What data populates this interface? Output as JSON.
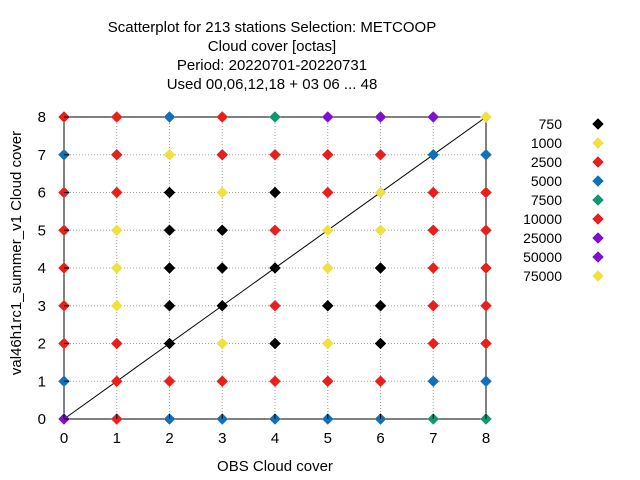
{
  "chart_data": {
    "type": "scatter",
    "title_lines": [
      "Scatterplot for  213 stations Selection: METCOOP",
      "Cloud cover [octas]",
      "Period: 20220701-20220731",
      "Used  00,06,12,18  + 03 06 ... 48"
    ],
    "xlabel": "OBS Cloud cover",
    "ylabel": "val46h1rc1_summer_v1 Cloud cover",
    "xlim": [
      0,
      8
    ],
    "ylim": [
      0,
      8
    ],
    "xticks": [
      0,
      1,
      2,
      3,
      4,
      5,
      6,
      7,
      8
    ],
    "yticks": [
      0,
      1,
      2,
      3,
      4,
      5,
      6,
      7,
      8
    ],
    "grid": true,
    "diagonal_line": true,
    "legend_placement": "right",
    "series": [
      {
        "name": "750",
        "color": "#000000",
        "points": [
          [
            2,
            2
          ],
          [
            2,
            3
          ],
          [
            2,
            4
          ],
          [
            2,
            5
          ],
          [
            2,
            6
          ],
          [
            3,
            3
          ],
          [
            3,
            4
          ],
          [
            3,
            5
          ],
          [
            4,
            2
          ],
          [
            4,
            4
          ],
          [
            4,
            6
          ],
          [
            5,
            3
          ],
          [
            6,
            2
          ],
          [
            6,
            3
          ],
          [
            6,
            4
          ]
        ]
      },
      {
        "name": "1000",
        "color": "#f0e040",
        "points": [
          [
            1,
            3
          ],
          [
            1,
            4
          ],
          [
            1,
            5
          ],
          [
            2,
            7
          ],
          [
            3,
            2
          ],
          [
            3,
            6
          ],
          [
            5,
            2
          ],
          [
            5,
            4
          ],
          [
            5,
            5
          ],
          [
            6,
            5
          ],
          [
            6,
            6
          ]
        ]
      },
      {
        "name": "2500",
        "color": "#e8201c",
        "points": [
          [
            0,
            2
          ],
          [
            0,
            3
          ],
          [
            0,
            4
          ],
          [
            0,
            5
          ],
          [
            0,
            6
          ],
          [
            0,
            8
          ],
          [
            1,
            0
          ],
          [
            1,
            1
          ],
          [
            1,
            2
          ],
          [
            1,
            6
          ],
          [
            1,
            7
          ],
          [
            1,
            8
          ],
          [
            2,
            1
          ],
          [
            3,
            1
          ],
          [
            3,
            7
          ],
          [
            3,
            8
          ],
          [
            4,
            1
          ],
          [
            4,
            3
          ],
          [
            4,
            5
          ],
          [
            4,
            7
          ],
          [
            5,
            1
          ],
          [
            5,
            6
          ],
          [
            5,
            7
          ],
          [
            6,
            1
          ],
          [
            6,
            7
          ],
          [
            7,
            2
          ],
          [
            7,
            3
          ],
          [
            7,
            4
          ],
          [
            7,
            5
          ],
          [
            7,
            6
          ],
          [
            8,
            2
          ],
          [
            8,
            3
          ],
          [
            8,
            4
          ],
          [
            8,
            5
          ],
          [
            8,
            6
          ]
        ]
      },
      {
        "name": "5000",
        "color": "#1070b8",
        "points": [
          [
            0,
            1
          ],
          [
            0,
            7
          ],
          [
            2,
            0
          ],
          [
            2,
            8
          ],
          [
            3,
            0
          ],
          [
            4,
            0
          ],
          [
            5,
            0
          ],
          [
            6,
            0
          ],
          [
            7,
            1
          ],
          [
            7,
            7
          ],
          [
            8,
            1
          ],
          [
            8,
            7
          ]
        ]
      },
      {
        "name": "7500",
        "color": "#109870",
        "points": [
          [
            4,
            8
          ],
          [
            7,
            0
          ],
          [
            8,
            0
          ]
        ]
      },
      {
        "name": "10000",
        "color": "#e8201c",
        "points": []
      },
      {
        "name": "25000",
        "color": "#8010d0",
        "points": [
          [
            0,
            0
          ],
          [
            5,
            8
          ],
          [
            6,
            8
          ],
          [
            7,
            8
          ]
        ]
      },
      {
        "name": "50000",
        "color": "#8010d0",
        "points": []
      },
      {
        "name": "75000",
        "color": "#f0e040",
        "points": [
          [
            8,
            8
          ]
        ]
      }
    ]
  }
}
